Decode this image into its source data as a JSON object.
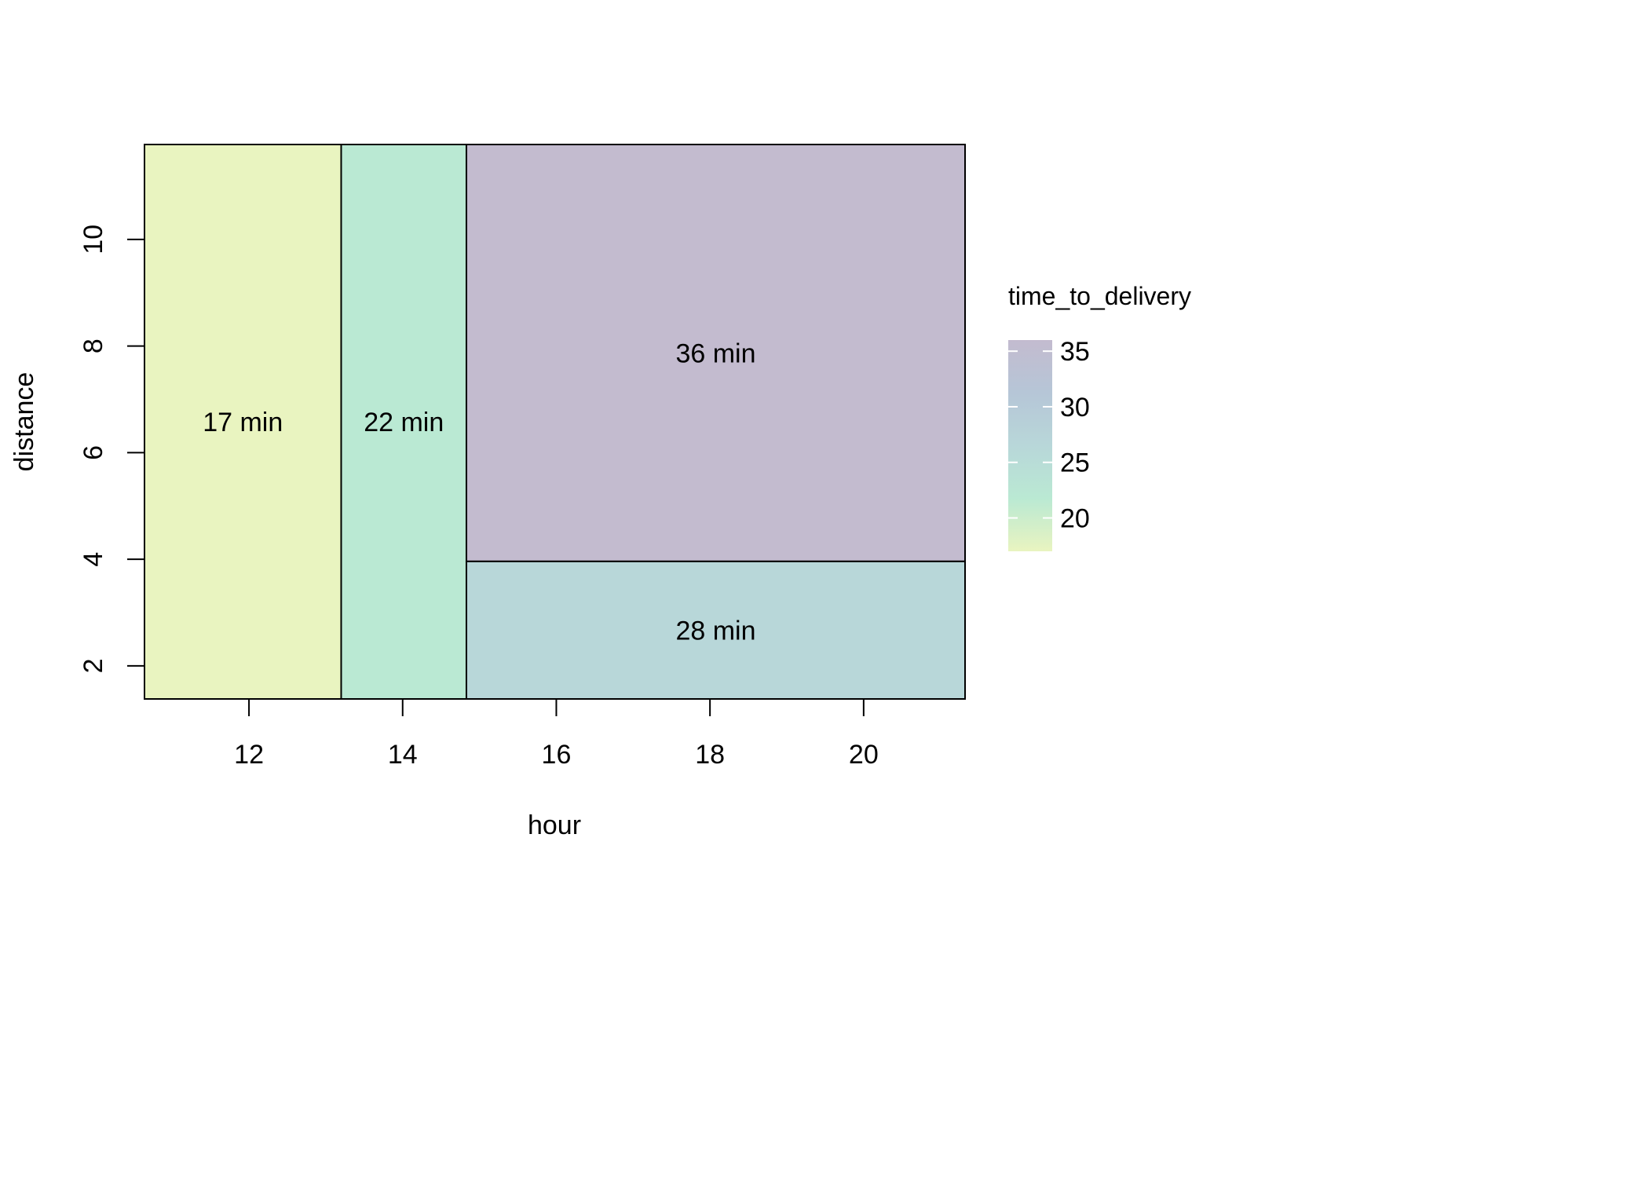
{
  "chart_data": {
    "type": "tree",
    "title": "",
    "xlabel": "hour",
    "ylabel": "distance",
    "xlim": [
      10.64,
      21.32
    ],
    "ylim": [
      1.38,
      11.78
    ],
    "xticks": [
      12,
      14,
      16,
      18,
      20
    ],
    "yticks": [
      2,
      4,
      6,
      8,
      10
    ],
    "regions": [
      {
        "label": "17 min",
        "value": 17,
        "x": [
          10.64,
          13.2
        ],
        "y": [
          1.38,
          11.78
        ],
        "color": "#e9f4c0"
      },
      {
        "label": "22 min",
        "value": 22,
        "x": [
          13.2,
          14.83
        ],
        "y": [
          1.38,
          11.78
        ],
        "color": "#bae9d3"
      },
      {
        "label": "36 min",
        "value": 36,
        "x": [
          14.83,
          21.32
        ],
        "y": [
          3.96,
          11.78
        ],
        "color": "#c3bbcf"
      },
      {
        "label": "28 min",
        "value": 28,
        "x": [
          14.83,
          21.32
        ],
        "y": [
          1.38,
          3.96
        ],
        "color": "#b8d7d9"
      }
    ],
    "legend": {
      "title": "time_to_delivery",
      "placement": "right",
      "min": 17,
      "max": 36,
      "ticks": [
        20,
        25,
        30,
        35
      ],
      "colors": [
        "#e9f4c0",
        "#bae9d3",
        "#b8d7d9",
        "#b6c6d7",
        "#c3bbcf"
      ]
    },
    "grid": false
  }
}
